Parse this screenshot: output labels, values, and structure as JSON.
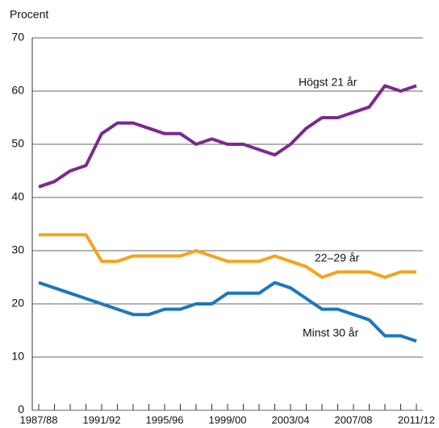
{
  "chart_data": {
    "type": "line",
    "y_label": "Procent",
    "categories": [
      "1987/88",
      null,
      null,
      null,
      "1991/92",
      null,
      null,
      null,
      "1995/96",
      null,
      null,
      null,
      "1999/00",
      null,
      null,
      null,
      "2003/04",
      null,
      null,
      null,
      "2007/08",
      null,
      null,
      null,
      "2011/12"
    ],
    "series": [
      {
        "name": "Högst 21 år",
        "color": "#7b2a8e",
        "values": [
          42,
          43,
          45,
          46,
          52,
          54,
          54,
          53,
          52,
          52,
          50,
          51,
          50,
          50,
          49,
          48,
          50,
          53,
          55,
          55,
          56,
          57,
          61,
          60,
          61
        ]
      },
      {
        "name": "22–29 år",
        "color": "#f2a51e",
        "values": [
          33,
          33,
          33,
          33,
          28,
          28,
          29,
          29,
          29,
          29,
          30,
          29,
          28,
          28,
          28,
          29,
          28,
          27,
          25,
          26,
          26,
          26,
          25,
          26,
          26
        ]
      },
      {
        "name": "Minst 30 år",
        "color": "#1b78bd",
        "values": [
          24,
          23,
          22,
          21,
          20,
          19,
          18,
          18,
          19,
          19,
          20,
          20,
          22,
          22,
          22,
          24,
          23,
          21,
          19,
          19,
          18,
          17,
          14,
          14,
          13
        ]
      }
    ],
    "ylim": [
      0,
      70
    ],
    "yticks": [
      0,
      10,
      20,
      30,
      40,
      50,
      60,
      70
    ],
    "grid": true
  }
}
